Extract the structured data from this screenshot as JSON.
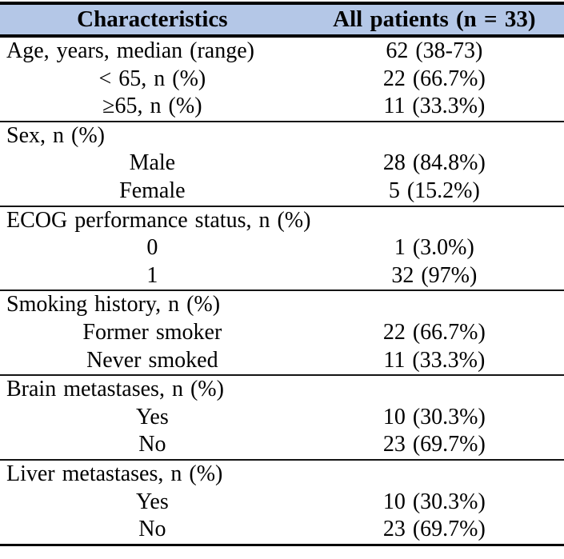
{
  "table": {
    "header": {
      "characteristics": "Characteristics",
      "all_patients": "All patients (n = 33)"
    },
    "sections": [
      {
        "label": "Age, years, median (range)",
        "value": "62 (38-73)",
        "rows": [
          {
            "label": "< 65, n (%)",
            "value": "22 (66.7%)"
          },
          {
            "label": "≥65, n (%)",
            "value": "11 (33.3%)"
          }
        ]
      },
      {
        "label": "Sex, n (%)",
        "value": "",
        "rows": [
          {
            "label": "Male",
            "value": "28 (84.8%)"
          },
          {
            "label": "Female",
            "value": "5 (15.2%)"
          }
        ]
      },
      {
        "label": "ECOG performance status, n (%)",
        "value": "",
        "rows": [
          {
            "label": "0",
            "value": "1 (3.0%)"
          },
          {
            "label": "1",
            "value": "32 (97%)"
          }
        ]
      },
      {
        "label": "Smoking history, n (%)",
        "value": "",
        "rows": [
          {
            "label": "Former smoker",
            "value": "22 (66.7%)"
          },
          {
            "label": "Never smoked",
            "value": "11 (33.3%)"
          }
        ]
      },
      {
        "label": "Brain metastases, n (%)",
        "value": "",
        "rows": [
          {
            "label": "Yes",
            "value": "10 (30.3%)"
          },
          {
            "label": "No",
            "value": "23 (69.7%)"
          }
        ]
      },
      {
        "label": "Liver metastases, n (%)",
        "value": "",
        "rows": [
          {
            "label": "Yes",
            "value": "10 (30.3%)"
          },
          {
            "label": "No",
            "value": "23 (69.7%)"
          }
        ]
      }
    ],
    "colors": {
      "header_bg": "#b4c7e7",
      "border": "#000000",
      "text": "#000000"
    }
  }
}
